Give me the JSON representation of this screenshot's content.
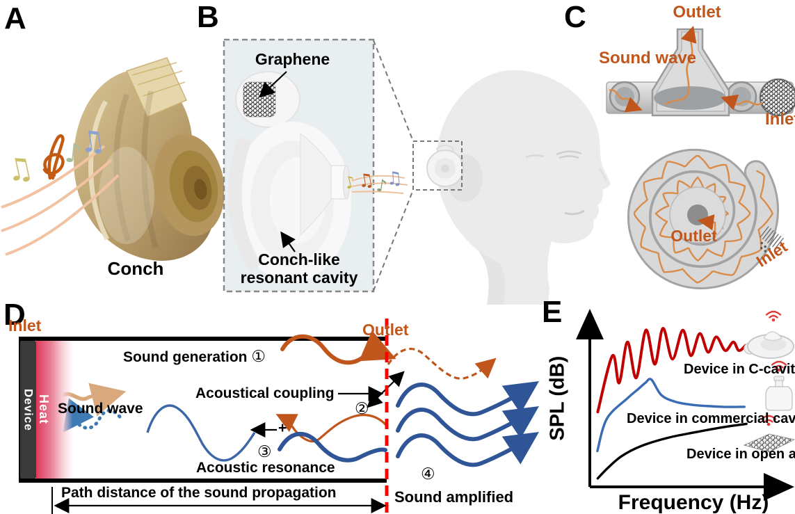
{
  "colors": {
    "accent_orange": "#C0561B",
    "wave_tan": "#D9A87C",
    "wave_blue_thick": "#2F5597",
    "wave_blue_thin": "#3B66A8",
    "wave_blue_dotted": "#3E7AB3",
    "outlet_dashed_line_red": "#FF0000",
    "heat_red": "#E03A5C",
    "panel_b_box_bg": "#E9EFF1",
    "curve_red": "#C00000",
    "curve_blue": "#3A6BB5",
    "curve_black": "#000000"
  },
  "panels": {
    "a": {
      "letter": "A",
      "caption": "Conch"
    },
    "b": {
      "letter": "B",
      "graphene_label": "Graphene",
      "cavity_label_line1": "Conch-like",
      "cavity_label_line2": "resonant cavity"
    },
    "c": {
      "letter": "C",
      "outlet_top": "Outlet",
      "sound_wave_label": "Sound wave",
      "inlet_top": "Inlet",
      "outlet_spiral": "Outlet",
      "inlet_spiral": "Inlet"
    },
    "d": {
      "letter": "D",
      "inlet_label": "Inlet",
      "outlet_label": "Outlet",
      "device_label": "Device",
      "heat_label": "Heat",
      "sound_wave_label": "Sound wave",
      "plus_sign": "+",
      "path_distance_label": "Path distance of the sound propagation",
      "steps": [
        {
          "num": "①",
          "label": "Sound generation"
        },
        {
          "num": "②",
          "label": "Acoustical coupling"
        },
        {
          "num": "③",
          "label": "Acoustic resonance"
        },
        {
          "num": "④",
          "label": "Sound amplified"
        }
      ]
    },
    "e": {
      "letter": "E"
    }
  },
  "chart_data": {
    "type": "line",
    "title": "",
    "xlabel": "Frequency (Hz)",
    "ylabel": "SPL (dB)",
    "axes_numeric": false,
    "grid": false,
    "legend_position": "inline-right",
    "x_range_normalized": [
      0,
      100
    ],
    "y_range_normalized": [
      0,
      100
    ],
    "series": [
      {
        "name": "Device in C-cavity",
        "color": "#C00000",
        "shape": "multiple resonance peaks, envelope rises then slowly decays",
        "icon": "c-cavity-device-icon",
        "points": [
          [
            4,
            44
          ],
          [
            11.4,
            77
          ],
          [
            14.8,
            61
          ],
          [
            19,
            85
          ],
          [
            23.4,
            64
          ],
          [
            28.3,
            92
          ],
          [
            32.8,
            72
          ],
          [
            36.9,
            93
          ],
          [
            41.7,
            75
          ],
          [
            46.9,
            92
          ],
          [
            51,
            77
          ],
          [
            55.5,
            90
          ],
          [
            59.7,
            79
          ],
          [
            63.8,
            88
          ],
          [
            68.3,
            80
          ],
          [
            72.4,
            85
          ],
          [
            75.2,
            80
          ],
          [
            78.6,
            83
          ]
        ]
      },
      {
        "name": "Device in commercial cavity",
        "color": "#3A6BB5",
        "shape": "single sharp resonance peak then flat decay",
        "icon": "commercial-cavity-device-icon",
        "points": [
          [
            3.8,
            21
          ],
          [
            8.6,
            40
          ],
          [
            19,
            52
          ],
          [
            24,
            57
          ],
          [
            28,
            61
          ],
          [
            31,
            63
          ],
          [
            36,
            54
          ],
          [
            43,
            50
          ],
          [
            53,
            48
          ],
          [
            67,
            47
          ],
          [
            78,
            47
          ]
        ]
      },
      {
        "name": "Device in open air",
        "color": "#000000",
        "shape": "smooth monotonically rising curve",
        "icon": "graphene-sheet-icon",
        "points": [
          [
            4,
            5
          ],
          [
            9,
            11
          ],
          [
            16,
            18
          ],
          [
            26,
            24
          ],
          [
            40,
            29
          ],
          [
            53,
            32
          ],
          [
            67,
            35
          ],
          [
            79,
            37
          ]
        ]
      }
    ]
  }
}
